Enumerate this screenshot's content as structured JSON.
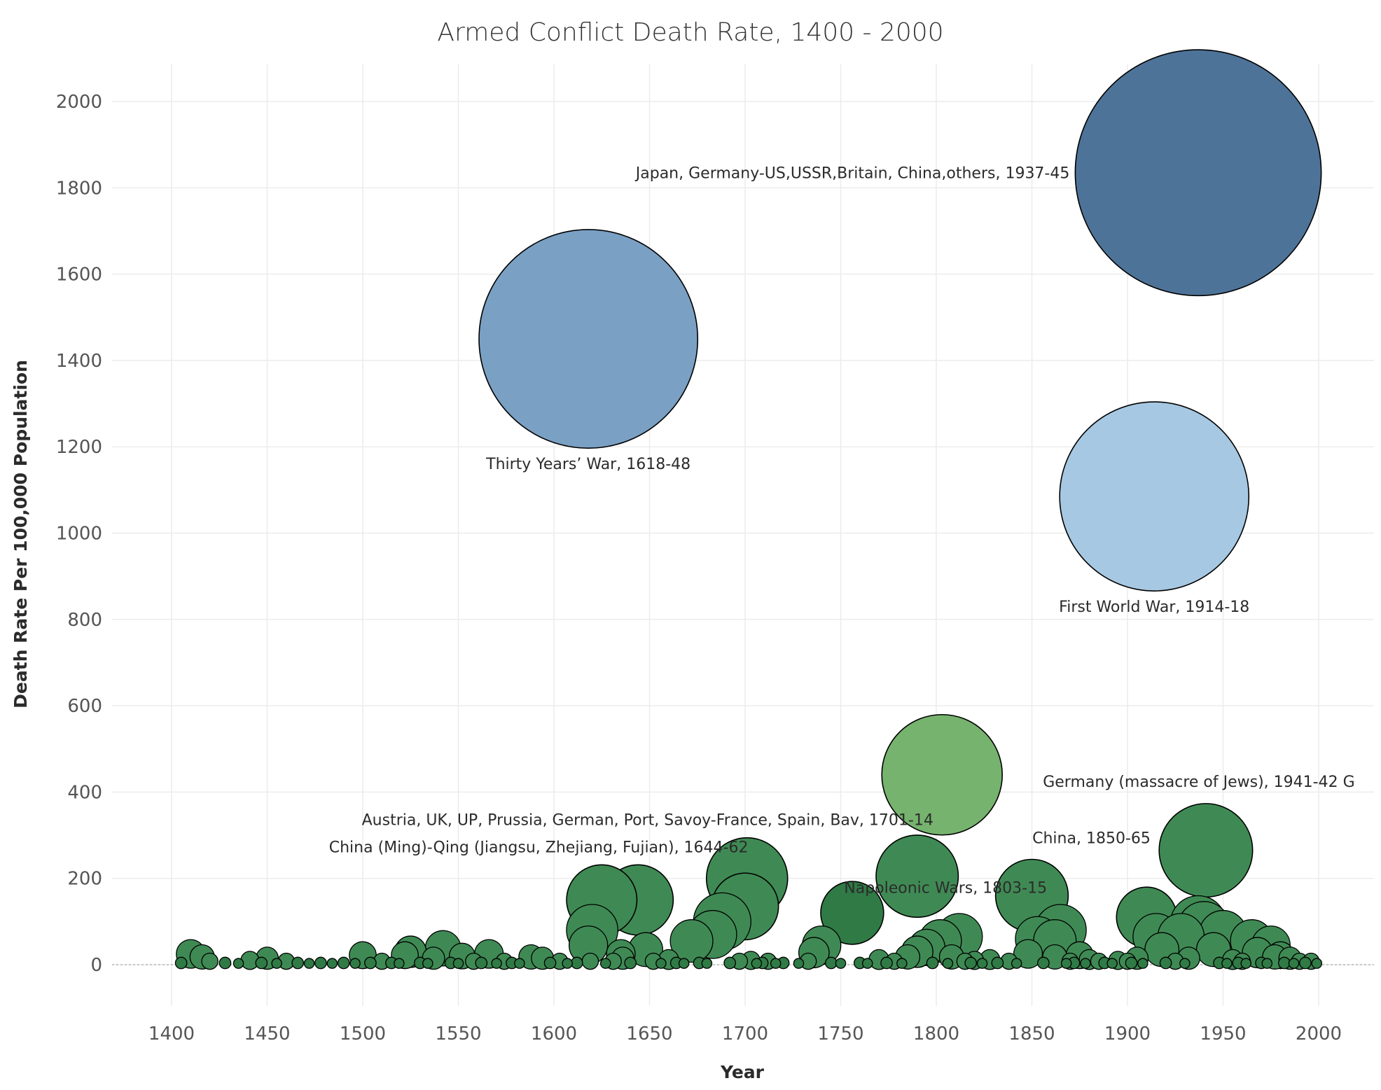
{
  "chart_data": {
    "type": "scatter",
    "title": "Armed Conflict Death Rate, 1400 - 2000",
    "xlabel": "Year",
    "ylabel": "Death Rate Per 100,000 Population",
    "xlim": [
      1370,
      2015
    ],
    "ylim": [
      -100,
      2100
    ],
    "x_ticks": [
      1400,
      1450,
      1500,
      1550,
      1600,
      1650,
      1700,
      1750,
      1800,
      1850,
      1900,
      1950,
      2000
    ],
    "y_ticks": [
      0,
      200,
      400,
      600,
      800,
      1000,
      1200,
      1400,
      1600,
      1800,
      2000
    ],
    "grid": true,
    "bubble_size": "proportional to death rate",
    "reference_line": {
      "y": 0,
      "style": "dotted"
    },
    "colors": {
      "ww2": "#4E7398",
      "thirty_years": "#7AA0C4",
      "ww1": "#A6C8E2",
      "napoleonic": "#76B36E",
      "other": "#3F8A54",
      "small": "#2F7A45"
    },
    "points": [
      {
        "x": 1937,
        "y": 1835,
        "color": "#4E7398",
        "label": "Japan, Germany-US,USSR,Britain, China,others, 1937-45",
        "label_pos": "left"
      },
      {
        "x": 1618,
        "y": 1450,
        "color": "#7AA0C4",
        "label": "Thirty Years’ War, 1618-48",
        "label_pos": "below"
      },
      {
        "x": 1914,
        "y": 1085,
        "color": "#A6C8E2",
        "label": "First World War, 1914-18",
        "label_pos": "below"
      },
      {
        "x": 1803,
        "y": 440,
        "color": "#76B36E",
        "label": "Napoleonic Wars, 1803-15",
        "label_pos": "below"
      },
      {
        "x": 1941,
        "y": 265,
        "color": "#3F8A54",
        "label": "Germany (massacre of Jews), 1941-42 G",
        "label_pos": "above"
      },
      {
        "x": 1701,
        "y": 200,
        "color": "#3F8A54",
        "label": "Austria, UK, UP, Prussia, German, Port, Savoy-France, Spain, Bav, 1701-14",
        "label_pos": "upper-left"
      },
      {
        "x": 1644,
        "y": 150,
        "color": "#3F8A54",
        "label": "China (Ming)-Qing (Jiangsu, Zhejiang, Fujian), 1644-62",
        "label_pos": "upper-left"
      },
      {
        "x": 1850,
        "y": 160,
        "color": "#3F8A54",
        "label": "China, 1850-65",
        "label_pos": "above"
      },
      {
        "x": 1790,
        "y": 205,
        "color": "#3F8A54"
      },
      {
        "x": 1625,
        "y": 150,
        "color": "#3F8A54"
      },
      {
        "x": 1700,
        "y": 135,
        "color": "#3F8A54"
      },
      {
        "x": 1756,
        "y": 120,
        "color": "#2F7A45"
      },
      {
        "x": 1910,
        "y": 110,
        "color": "#3F8A54"
      },
      {
        "x": 1688,
        "y": 100,
        "color": "#3F8A54"
      },
      {
        "x": 1937,
        "y": 95,
        "color": "#3F8A54"
      },
      {
        "x": 1940,
        "y": 85,
        "color": "#3F8A54"
      },
      {
        "x": 1865,
        "y": 80,
        "color": "#3F8A54"
      },
      {
        "x": 1620,
        "y": 80,
        "color": "#3F8A54"
      },
      {
        "x": 1950,
        "y": 70,
        "color": "#3F8A54"
      },
      {
        "x": 1683,
        "y": 70,
        "color": "#3F8A54"
      },
      {
        "x": 1812,
        "y": 65,
        "color": "#3F8A54"
      },
      {
        "x": 1915,
        "y": 65,
        "color": "#3F8A54"
      },
      {
        "x": 1928,
        "y": 65,
        "color": "#3F8A54"
      },
      {
        "x": 1853,
        "y": 60,
        "color": "#3F8A54"
      },
      {
        "x": 1672,
        "y": 55,
        "color": "#3F8A54"
      },
      {
        "x": 1965,
        "y": 55,
        "color": "#3F8A54"
      },
      {
        "x": 1802,
        "y": 55,
        "color": "#3F8A54"
      },
      {
        "x": 1862,
        "y": 55,
        "color": "#3F8A54"
      },
      {
        "x": 1740,
        "y": 45,
        "color": "#3F8A54"
      },
      {
        "x": 1618,
        "y": 45,
        "color": "#3F8A54"
      },
      {
        "x": 1975,
        "y": 45,
        "color": "#3F8A54"
      },
      {
        "x": 1795,
        "y": 40,
        "color": "#3F8A54"
      },
      {
        "x": 1542,
        "y": 38,
        "color": "#3F8A54"
      },
      {
        "x": 1945,
        "y": 35,
        "color": "#3F8A54"
      },
      {
        "x": 1918,
        "y": 35,
        "color": "#3F8A54"
      },
      {
        "x": 1648,
        "y": 35,
        "color": "#3F8A54"
      },
      {
        "x": 1525,
        "y": 30,
        "color": "#3F8A54"
      },
      {
        "x": 1790,
        "y": 30,
        "color": "#3F8A54"
      },
      {
        "x": 1968,
        "y": 28,
        "color": "#3F8A54"
      },
      {
        "x": 1736,
        "y": 28,
        "color": "#3F8A54"
      },
      {
        "x": 1410,
        "y": 25,
        "color": "#3F8A54"
      },
      {
        "x": 1635,
        "y": 25,
        "color": "#3F8A54"
      },
      {
        "x": 1848,
        "y": 25,
        "color": "#3F8A54"
      },
      {
        "x": 1566,
        "y": 25,
        "color": "#3F8A54"
      },
      {
        "x": 1500,
        "y": 22,
        "color": "#3F8A54"
      },
      {
        "x": 1875,
        "y": 22,
        "color": "#3F8A54"
      },
      {
        "x": 1980,
        "y": 22,
        "color": "#3F8A54"
      },
      {
        "x": 1522,
        "y": 22,
        "color": "#3F8A54"
      },
      {
        "x": 1552,
        "y": 20,
        "color": "#3F8A54"
      },
      {
        "x": 1588,
        "y": 18,
        "color": "#3F8A54"
      },
      {
        "x": 1416,
        "y": 18,
        "color": "#3F8A54"
      },
      {
        "x": 1862,
        "y": 18,
        "color": "#3F8A54"
      },
      {
        "x": 1808,
        "y": 18,
        "color": "#3F8A54"
      },
      {
        "x": 1977,
        "y": 18,
        "color": "#3F8A54"
      },
      {
        "x": 1785,
        "y": 18,
        "color": "#3F8A54"
      },
      {
        "x": 1537,
        "y": 15,
        "color": "#3F8A54"
      },
      {
        "x": 1450,
        "y": 15,
        "color": "#3F8A54"
      },
      {
        "x": 1636,
        "y": 15,
        "color": "#3F8A54"
      },
      {
        "x": 1905,
        "y": 15,
        "color": "#3F8A54"
      },
      {
        "x": 1932,
        "y": 15,
        "color": "#3F8A54"
      },
      {
        "x": 1985,
        "y": 15,
        "color": "#3F8A54"
      },
      {
        "x": 1594,
        "y": 15,
        "color": "#3F8A54"
      },
      {
        "x": 1770,
        "y": 12,
        "color": "#3F8A54"
      },
      {
        "x": 1660,
        "y": 12,
        "color": "#3F8A54"
      },
      {
        "x": 1880,
        "y": 12,
        "color": "#3F8A54"
      },
      {
        "x": 1955,
        "y": 12,
        "color": "#3F8A54"
      },
      {
        "x": 1828,
        "y": 12,
        "color": "#3F8A54"
      },
      {
        "x": 1441,
        "y": 10,
        "color": "#3F8A54"
      },
      {
        "x": 1703,
        "y": 10,
        "color": "#3F8A54"
      },
      {
        "x": 1820,
        "y": 10,
        "color": "#3F8A54"
      },
      {
        "x": 1895,
        "y": 10,
        "color": "#3F8A54"
      },
      {
        "x": 1420,
        "y": 8,
        "color": "#3F8A54"
      },
      {
        "x": 1460,
        "y": 8,
        "color": "#3F8A54"
      },
      {
        "x": 1510,
        "y": 8,
        "color": "#3F8A54"
      },
      {
        "x": 1558,
        "y": 8,
        "color": "#3F8A54"
      },
      {
        "x": 1574,
        "y": 8,
        "color": "#3F8A54"
      },
      {
        "x": 1603,
        "y": 8,
        "color": "#3F8A54"
      },
      {
        "x": 1619,
        "y": 8,
        "color": "#3F8A54"
      },
      {
        "x": 1631,
        "y": 8,
        "color": "#3F8A54"
      },
      {
        "x": 1652,
        "y": 8,
        "color": "#3F8A54"
      },
      {
        "x": 1697,
        "y": 8,
        "color": "#3F8A54"
      },
      {
        "x": 1712,
        "y": 8,
        "color": "#3F8A54"
      },
      {
        "x": 1733,
        "y": 8,
        "color": "#3F8A54"
      },
      {
        "x": 1778,
        "y": 8,
        "color": "#3F8A54"
      },
      {
        "x": 1815,
        "y": 8,
        "color": "#3F8A54"
      },
      {
        "x": 1838,
        "y": 8,
        "color": "#3F8A54"
      },
      {
        "x": 1870,
        "y": 8,
        "color": "#3F8A54"
      },
      {
        "x": 1885,
        "y": 8,
        "color": "#3F8A54"
      },
      {
        "x": 1900,
        "y": 8,
        "color": "#3F8A54"
      },
      {
        "x": 1925,
        "y": 8,
        "color": "#3F8A54"
      },
      {
        "x": 1960,
        "y": 8,
        "color": "#3F8A54"
      },
      {
        "x": 1990,
        "y": 8,
        "color": "#3F8A54"
      },
      {
        "x": 1996,
        "y": 8,
        "color": "#3F8A54"
      },
      {
        "x": 1405,
        "y": 4,
        "color": "#2F7A45"
      },
      {
        "x": 1428,
        "y": 4,
        "color": "#2F7A45"
      },
      {
        "x": 1435,
        "y": 3,
        "color": "#2F7A45"
      },
      {
        "x": 1447,
        "y": 4,
        "color": "#2F7A45"
      },
      {
        "x": 1455,
        "y": 3,
        "color": "#2F7A45"
      },
      {
        "x": 1466,
        "y": 4,
        "color": "#2F7A45"
      },
      {
        "x": 1472,
        "y": 3,
        "color": "#2F7A45"
      },
      {
        "x": 1478,
        "y": 4,
        "color": "#2F7A45"
      },
      {
        "x": 1484,
        "y": 3,
        "color": "#2F7A45"
      },
      {
        "x": 1490,
        "y": 4,
        "color": "#2F7A45"
      },
      {
        "x": 1496,
        "y": 3,
        "color": "#2F7A45"
      },
      {
        "x": 1504,
        "y": 4,
        "color": "#2F7A45"
      },
      {
        "x": 1515,
        "y": 4,
        "color": "#2F7A45"
      },
      {
        "x": 1519,
        "y": 3,
        "color": "#2F7A45"
      },
      {
        "x": 1530,
        "y": 4,
        "color": "#2F7A45"
      },
      {
        "x": 1534,
        "y": 3,
        "color": "#2F7A45"
      },
      {
        "x": 1546,
        "y": 4,
        "color": "#2F7A45"
      },
      {
        "x": 1550,
        "y": 3,
        "color": "#2F7A45"
      },
      {
        "x": 1562,
        "y": 4,
        "color": "#2F7A45"
      },
      {
        "x": 1570,
        "y": 3,
        "color": "#2F7A45"
      },
      {
        "x": 1578,
        "y": 4,
        "color": "#2F7A45"
      },
      {
        "x": 1582,
        "y": 3,
        "color": "#2F7A45"
      },
      {
        "x": 1598,
        "y": 4,
        "color": "#2F7A45"
      },
      {
        "x": 1607,
        "y": 3,
        "color": "#2F7A45"
      },
      {
        "x": 1612,
        "y": 4,
        "color": "#2F7A45"
      },
      {
        "x": 1627,
        "y": 3,
        "color": "#2F7A45"
      },
      {
        "x": 1640,
        "y": 4,
        "color": "#2F7A45"
      },
      {
        "x": 1656,
        "y": 3,
        "color": "#2F7A45"
      },
      {
        "x": 1664,
        "y": 4,
        "color": "#2F7A45"
      },
      {
        "x": 1668,
        "y": 3,
        "color": "#2F7A45"
      },
      {
        "x": 1676,
        "y": 4,
        "color": "#2F7A45"
      },
      {
        "x": 1680,
        "y": 3,
        "color": "#2F7A45"
      },
      {
        "x": 1692,
        "y": 4,
        "color": "#2F7A45"
      },
      {
        "x": 1706,
        "y": 3,
        "color": "#2F7A45"
      },
      {
        "x": 1709,
        "y": 4,
        "color": "#2F7A45"
      },
      {
        "x": 1716,
        "y": 3,
        "color": "#2F7A45"
      },
      {
        "x": 1720,
        "y": 4,
        "color": "#2F7A45"
      },
      {
        "x": 1728,
        "y": 3,
        "color": "#2F7A45"
      },
      {
        "x": 1745,
        "y": 4,
        "color": "#2F7A45"
      },
      {
        "x": 1750,
        "y": 3,
        "color": "#2F7A45"
      },
      {
        "x": 1760,
        "y": 4,
        "color": "#2F7A45"
      },
      {
        "x": 1764,
        "y": 3,
        "color": "#2F7A45"
      },
      {
        "x": 1774,
        "y": 4,
        "color": "#2F7A45"
      },
      {
        "x": 1782,
        "y": 3,
        "color": "#2F7A45"
      },
      {
        "x": 1798,
        "y": 4,
        "color": "#2F7A45"
      },
      {
        "x": 1806,
        "y": 3,
        "color": "#2F7A45"
      },
      {
        "x": 1818,
        "y": 4,
        "color": "#2F7A45"
      },
      {
        "x": 1824,
        "y": 3,
        "color": "#2F7A45"
      },
      {
        "x": 1832,
        "y": 4,
        "color": "#2F7A45"
      },
      {
        "x": 1842,
        "y": 3,
        "color": "#2F7A45"
      },
      {
        "x": 1856,
        "y": 4,
        "color": "#2F7A45"
      },
      {
        "x": 1868,
        "y": 3,
        "color": "#2F7A45"
      },
      {
        "x": 1872,
        "y": 4,
        "color": "#2F7A45"
      },
      {
        "x": 1878,
        "y": 3,
        "color": "#2F7A45"
      },
      {
        "x": 1888,
        "y": 4,
        "color": "#2F7A45"
      },
      {
        "x": 1892,
        "y": 3,
        "color": "#2F7A45"
      },
      {
        "x": 1902,
        "y": 4,
        "color": "#2F7A45"
      },
      {
        "x": 1908,
        "y": 3,
        "color": "#2F7A45"
      },
      {
        "x": 1920,
        "y": 4,
        "color": "#2F7A45"
      },
      {
        "x": 1930,
        "y": 3,
        "color": "#2F7A45"
      },
      {
        "x": 1948,
        "y": 4,
        "color": "#2F7A45"
      },
      {
        "x": 1952,
        "y": 3,
        "color": "#2F7A45"
      },
      {
        "x": 1958,
        "y": 4,
        "color": "#2F7A45"
      },
      {
        "x": 1962,
        "y": 3,
        "color": "#2F7A45"
      },
      {
        "x": 1970,
        "y": 4,
        "color": "#2F7A45"
      },
      {
        "x": 1973,
        "y": 3,
        "color": "#2F7A45"
      },
      {
        "x": 1982,
        "y": 4,
        "color": "#2F7A45"
      },
      {
        "x": 1987,
        "y": 3,
        "color": "#2F7A45"
      },
      {
        "x": 1993,
        "y": 4,
        "color": "#2F7A45"
      },
      {
        "x": 1999,
        "y": 3,
        "color": "#2F7A45"
      }
    ]
  }
}
